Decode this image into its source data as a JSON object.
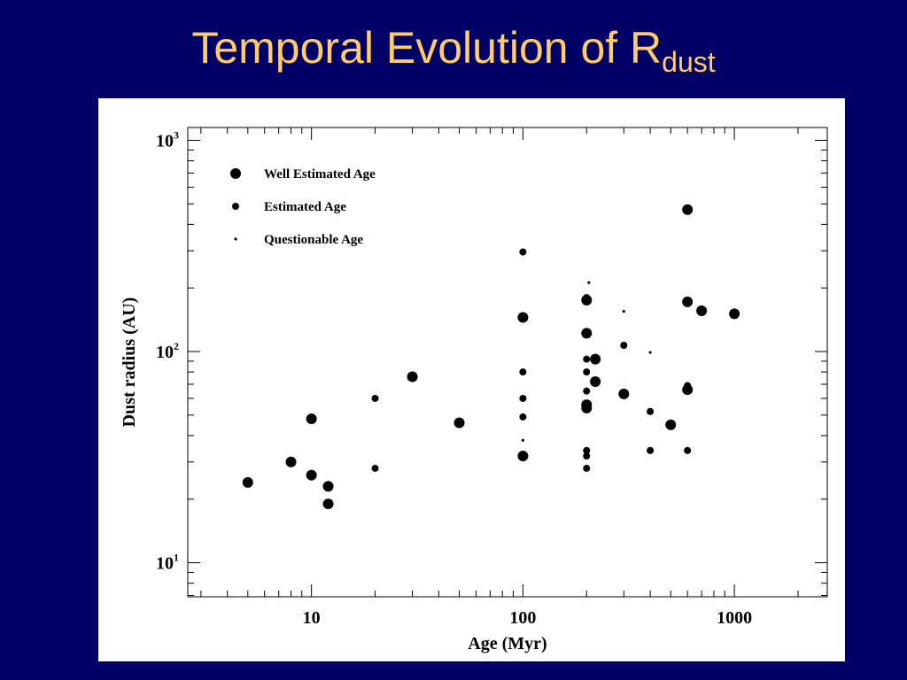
{
  "title": {
    "main": "Temporal Evolution of R",
    "subscript": "dust"
  },
  "chart_data": {
    "type": "scatter",
    "title": "Temporal Evolution of Rdust",
    "xlabel": "Age (Myr)",
    "ylabel": "Dust radius (AU)",
    "xscale": "log",
    "yscale": "log",
    "xlim": [
      2.6,
      2750
    ],
    "ylim": [
      6.9,
      1150
    ],
    "x_ticks": [
      {
        "value": 10,
        "label": "10"
      },
      {
        "value": 100,
        "label": "100"
      },
      {
        "value": 1000,
        "label": "1000"
      }
    ],
    "y_ticks": [
      {
        "value": 10,
        "base": "10",
        "exp": "1"
      },
      {
        "value": 100,
        "base": "10",
        "exp": "2"
      },
      {
        "value": 1000,
        "base": "10",
        "exp": "3"
      }
    ],
    "grid": false,
    "legend_position": "top-left",
    "marker_color": "#000000",
    "series": [
      {
        "name": "Well Estimated Age",
        "marker": "large",
        "points": [
          {
            "x": 5,
            "y": 24
          },
          {
            "x": 8,
            "y": 30
          },
          {
            "x": 10,
            "y": 48
          },
          {
            "x": 10,
            "y": 26
          },
          {
            "x": 12,
            "y": 23
          },
          {
            "x": 12,
            "y": 19
          },
          {
            "x": 30,
            "y": 76
          },
          {
            "x": 50,
            "y": 46
          },
          {
            "x": 100,
            "y": 145
          },
          {
            "x": 100,
            "y": 32
          },
          {
            "x": 200,
            "y": 175
          },
          {
            "x": 200,
            "y": 122
          },
          {
            "x": 200,
            "y": 56
          },
          {
            "x": 200,
            "y": 54
          },
          {
            "x": 220,
            "y": 92
          },
          {
            "x": 220,
            "y": 72
          },
          {
            "x": 300,
            "y": 63
          },
          {
            "x": 500,
            "y": 45
          },
          {
            "x": 600,
            "y": 470
          },
          {
            "x": 600,
            "y": 172
          },
          {
            "x": 600,
            "y": 66
          },
          {
            "x": 700,
            "y": 156
          },
          {
            "x": 1000,
            "y": 151
          }
        ]
      },
      {
        "name": "Estimated Age",
        "marker": "medium",
        "points": [
          {
            "x": 20,
            "y": 60
          },
          {
            "x": 20,
            "y": 28
          },
          {
            "x": 100,
            "y": 296
          },
          {
            "x": 100,
            "y": 80
          },
          {
            "x": 100,
            "y": 60
          },
          {
            "x": 100,
            "y": 49
          },
          {
            "x": 200,
            "y": 180
          },
          {
            "x": 200,
            "y": 92
          },
          {
            "x": 200,
            "y": 80
          },
          {
            "x": 200,
            "y": 65
          },
          {
            "x": 200,
            "y": 34
          },
          {
            "x": 200,
            "y": 32
          },
          {
            "x": 200,
            "y": 28
          },
          {
            "x": 300,
            "y": 107
          },
          {
            "x": 400,
            "y": 52
          },
          {
            "x": 400,
            "y": 34
          },
          {
            "x": 600,
            "y": 69
          },
          {
            "x": 600,
            "y": 34
          }
        ]
      },
      {
        "name": "Questionable Age",
        "marker": "small",
        "points": [
          {
            "x": 100,
            "y": 38
          },
          {
            "x": 205,
            "y": 212
          },
          {
            "x": 300,
            "y": 155
          },
          {
            "x": 400,
            "y": 99
          }
        ]
      }
    ]
  }
}
